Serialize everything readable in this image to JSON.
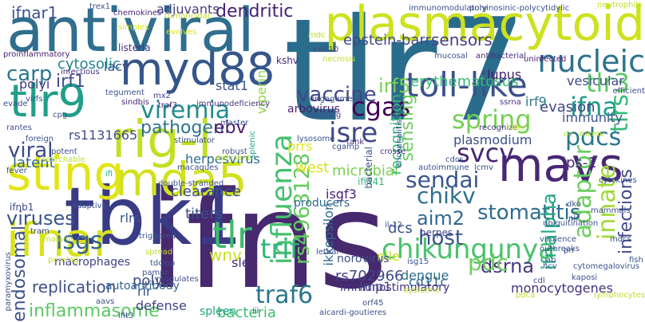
{
  "words": [
    {
      "text": "ifns",
      "color": "#46296e"
    },
    {
      "text": "tlr7",
      "color": "#2a6c8c"
    },
    {
      "text": "antiviral",
      "color": "#2f6e8e"
    },
    {
      "text": "plasmacytoid",
      "color": "#cde11d"
    },
    {
      "text": "tbk1",
      "color": "#3a3b85"
    },
    {
      "text": "myd88",
      "color": "#35568b"
    },
    {
      "text": "mavs",
      "color": "#482874"
    },
    {
      "text": "rig-i",
      "color": "#c2df23"
    },
    {
      "text": "sting",
      "color": "#e2e418"
    },
    {
      "text": "mda5",
      "color": "#d0e11c"
    },
    {
      "text": "tlr9",
      "color": "#1f9e89"
    },
    {
      "text": "ifnar",
      "color": "#d8e219"
    },
    {
      "text": "tlr",
      "color": "#3ebb6d"
    },
    {
      "text": "nucleic",
      "color": "#2c728e"
    },
    {
      "text": "toll-like",
      "color": "#3b518b"
    },
    {
      "text": "influenza",
      "color": "#47c06f"
    },
    {
      "text": "chikungunya",
      "color": "#4ac16d"
    },
    {
      "text": "viremia",
      "color": "#228c8d"
    },
    {
      "text": "cgas",
      "color": "#440154"
    },
    {
      "text": "isre",
      "color": "#3e4989"
    },
    {
      "text": "tlr3",
      "color": "#5dc863"
    },
    {
      "text": "spring",
      "color": "#74d055"
    },
    {
      "text": "ifna",
      "color": "#1e9b8a"
    },
    {
      "text": "pdcs",
      "color": "#2b758e"
    },
    {
      "text": "svcv",
      "color": "#482575"
    },
    {
      "text": "sendai",
      "color": "#39568c"
    },
    {
      "text": "chikv",
      "color": "#2d708e"
    },
    {
      "text": "innate",
      "color": "#a0da39"
    },
    {
      "text": "adaptor",
      "color": "#69cd5b"
    },
    {
      "text": "tlrs",
      "color": "#38b977"
    },
    {
      "text": "vaccine",
      "color": "#3f4788"
    },
    {
      "text": "carp",
      "color": "#2a788e"
    },
    {
      "text": "viral",
      "color": "#3e4a89"
    },
    {
      "text": "viruses",
      "color": "#3a548c"
    },
    {
      "text": "isgs",
      "color": "#33638d"
    },
    {
      "text": "ifnar1",
      "color": "#3b528b"
    },
    {
      "text": "dendritic",
      "color": "#482173"
    },
    {
      "text": "irf1",
      "color": "#3d4d8a"
    },
    {
      "text": "pathogen",
      "color": "#2c738e"
    },
    {
      "text": "ebv",
      "color": "#481b6d"
    },
    {
      "text": "trif",
      "color": "#32b67a"
    },
    {
      "text": "traf6",
      "color": "#2a768e"
    },
    {
      "text": "dsrna",
      "color": "#453882"
    },
    {
      "text": "stomatitis",
      "color": "#2e6d8e"
    },
    {
      "text": "pdc",
      "color": "#6ece58"
    },
    {
      "text": "host",
      "color": "#3b528b"
    },
    {
      "text": "aim2",
      "color": "#31688e"
    },
    {
      "text": "ifnalpha",
      "color": "#22a884"
    },
    {
      "text": "infections",
      "color": "#3f4889"
    },
    {
      "text": "rs4963128",
      "color": "#65cb5e"
    },
    {
      "text": "endosomal",
      "color": "#3b528b"
    },
    {
      "text": "replication",
      "color": "#3d4e8a"
    },
    {
      "text": "inflammasome",
      "color": "#5cc863"
    },
    {
      "text": "sensors",
      "color": "#423f85"
    },
    {
      "text": "epstein-barr",
      "color": "#3f4889"
    },
    {
      "text": "irf5",
      "color": "#7ad151"
    },
    {
      "text": "sensing",
      "color": "#6ccd5a"
    },
    {
      "text": "erythematosus",
      "color": "#38b977"
    },
    {
      "text": "lupus",
      "color": "#482071"
    },
    {
      "text": "vesicular",
      "color": "#3e4c8a"
    },
    {
      "text": "evasion",
      "color": "#424186"
    },
    {
      "text": "irf9",
      "color": "#2a788e"
    },
    {
      "text": "immunity",
      "color": "#3c508b"
    },
    {
      "text": "ips-1",
      "color": "#482979"
    },
    {
      "text": "herpesvirus",
      "color": "#2f6b8e"
    },
    {
      "text": "clearance",
      "color": "#3d4e8a"
    },
    {
      "text": "macrophages",
      "color": "#424186"
    },
    {
      "text": "titers",
      "color": "#3b528b"
    },
    {
      "text": "rlrs",
      "color": "#38588c"
    },
    {
      "text": "dcs",
      "color": "#3b528b"
    },
    {
      "text": "stat1",
      "color": "#3a538b"
    },
    {
      "text": "adjuvants",
      "color": "#433d84"
    },
    {
      "text": "lacv",
      "color": "#3d4d8a"
    },
    {
      "text": "kshv",
      "color": "#482677"
    },
    {
      "text": "cytosolic",
      "color": "#24868e"
    },
    {
      "text": "polyi",
      "color": "#46327e"
    },
    {
      "text": "rs1131665",
      "color": "#3e4c8a"
    },
    {
      "text": "latent",
      "color": "#31688e"
    },
    {
      "text": "wnv",
      "color": "#cae11f"
    },
    {
      "text": "rs702966",
      "color": "#3f4889"
    },
    {
      "text": "sle",
      "color": "#46307e"
    },
    {
      "text": "poly",
      "color": "#3e4989"
    },
    {
      "text": "rlr",
      "color": "#3b528b"
    },
    {
      "text": "defense",
      "color": "#414487"
    },
    {
      "text": "bacteria",
      "color": "#42be71"
    },
    {
      "text": "spleen",
      "color": "#20a386"
    },
    {
      "text": "lmp1",
      "color": "#3d4d8a"
    },
    {
      "text": "nile",
      "color": "#c2df23"
    },
    {
      "text": "west",
      "color": "#d5e21a"
    },
    {
      "text": "microbial",
      "color": "#7ad151"
    },
    {
      "text": "isgf3",
      "color": "#482173"
    },
    {
      "text": "plasmodium",
      "color": "#3c4f8a"
    },
    {
      "text": "ikkepsilon",
      "color": "#31688e"
    },
    {
      "text": "ifi441",
      "color": "#35b779"
    },
    {
      "text": "arbovirus",
      "color": "#481f70"
    },
    {
      "text": "mx2",
      "color": "#414487"
    },
    {
      "text": "viperin",
      "color": "#8bd646"
    },
    {
      "text": "cd11c",
      "color": "#2e6e8e"
    },
    {
      "text": "dengue",
      "color": "#2d708e"
    },
    {
      "text": "monocytogenes",
      "color": "#46327e"
    },
    {
      "text": "immunostimulatory",
      "color": "#46327e"
    },
    {
      "text": "recognition",
      "color": "#37b878"
    },
    {
      "text": "prrs",
      "color": "#e2e418"
    },
    {
      "text": "norovirus",
      "color": "#3d4e8a"
    },
    {
      "text": "autoantibody",
      "color": "#32658e"
    },
    {
      "text": "producers",
      "color": "#31688e"
    },
    {
      "text": "herpes",
      "color": "#414487"
    },
    {
      "text": "ifnb1",
      "color": "#3e4989"
    },
    {
      "text": "proinflammatory",
      "color": "#481c6e"
    },
    {
      "text": "listeria",
      "color": "#46307e"
    },
    {
      "text": "infectious",
      "color": "#463480"
    },
    {
      "text": "chemokines",
      "color": "#482475"
    },
    {
      "text": "trex1",
      "color": "#3b528b"
    },
    {
      "text": "immunomodulatory",
      "color": "#3b528b"
    },
    {
      "text": "polyinosinic-polycytidylic",
      "color": "#3b528b"
    },
    {
      "text": "neutrophils",
      "color": "#c2df23"
    },
    {
      "text": "tumoricidal",
      "color": "#bddf26"
    },
    {
      "text": "simplex",
      "color": "#d8e219"
    },
    {
      "text": "evolves",
      "color": "#dde318"
    },
    {
      "text": "mdc",
      "color": "#bddf26"
    },
    {
      "text": "cxcl10",
      "color": "#3f4788"
    },
    {
      "text": "necrosis",
      "color": "#bddf26"
    },
    {
      "text": "mucosal",
      "color": "#3b528b"
    },
    {
      "text": "antibacterial",
      "color": "#46307e"
    },
    {
      "text": "uninfected",
      "color": "#481d6f"
    },
    {
      "text": "efficient",
      "color": "#3b528b"
    },
    {
      "text": "ifi",
      "color": "#22a884"
    },
    {
      "text": "tegument",
      "color": "#3b528b"
    },
    {
      "text": "sindbis",
      "color": "#482878"
    },
    {
      "text": "evade",
      "color": "#3e4989"
    },
    {
      "text": "virfs",
      "color": "#3d4d8a"
    },
    {
      "text": "traf3",
      "color": "#482677"
    },
    {
      "text": "immunodeficiency",
      "color": "#46337f"
    },
    {
      "text": "cpg",
      "color": "#3b528b"
    },
    {
      "text": "tank",
      "color": "#46307e"
    },
    {
      "text": "cgamp",
      "color": "#3b528b"
    },
    {
      "text": "engagement",
      "color": "#3e4989"
    },
    {
      "text": "recognize",
      "color": "#46307e"
    },
    {
      "text": "killer",
      "color": "#c2df23"
    },
    {
      "text": "dc",
      "color": "#bddf26"
    },
    {
      "text": "ssrna",
      "color": "#46307e"
    },
    {
      "text": "rantes",
      "color": "#3b528b"
    },
    {
      "text": "foreign",
      "color": "#3b528b"
    },
    {
      "text": "stimulator",
      "color": "#3b528b"
    },
    {
      "text": "master",
      "color": "#3b528b"
    },
    {
      "text": "boosting",
      "color": "#3e4989"
    },
    {
      "text": "lysosome",
      "color": "#3b528b"
    },
    {
      "text": "encephalitis",
      "color": "#3b528b"
    },
    {
      "text": "crosse",
      "color": "#46307e"
    },
    {
      "text": "mcmv",
      "color": "#bddf26"
    },
    {
      "text": "fever",
      "color": "#3b528b"
    },
    {
      "text": "potent",
      "color": "#3b528b"
    },
    {
      "text": "searchable",
      "color": "#bddf26"
    },
    {
      "text": "robust",
      "color": "#3b528b"
    },
    {
      "text": "deficient",
      "color": "#bddf26"
    },
    {
      "text": "macaques",
      "color": "#3b528b"
    },
    {
      "text": "cdcs",
      "color": "#3b528b"
    },
    {
      "text": "lcmv",
      "color": "#3b528b"
    },
    {
      "text": "autoimmune",
      "color": "#3b528b"
    },
    {
      "text": "cytokines",
      "color": "#3b528b"
    },
    {
      "text": "double-stranded",
      "color": "#3b528b"
    },
    {
      "text": "splenic",
      "color": "#20a386"
    },
    {
      "text": "bacterial",
      "color": "#3b528b"
    },
    {
      "text": "adaptive",
      "color": "#3b528b"
    },
    {
      "text": "tram",
      "color": "#3b528b"
    },
    {
      "text": "malaria",
      "color": "#bddf26"
    },
    {
      "text": "triggered",
      "color": "#3b528b"
    },
    {
      "text": "lethal",
      "color": "#3b528b"
    },
    {
      "text": "il-12",
      "color": "#3b528b"
    },
    {
      "text": "dko",
      "color": "#3b528b"
    },
    {
      "text": "mammals",
      "color": "#3b528b"
    },
    {
      "text": "spread",
      "color": "#bddf26"
    },
    {
      "text": "tdcipp",
      "color": "#3b528b"
    },
    {
      "text": "pampr",
      "color": "#3b528b"
    },
    {
      "text": "priming",
      "color": "#bddf26"
    },
    {
      "text": "ubiquitination",
      "color": "#3b528b"
    },
    {
      "text": "nk",
      "color": "#3b528b"
    },
    {
      "text": "virulence",
      "color": "#3b528b"
    },
    {
      "text": "outbreaks",
      "color": "#3b528b"
    },
    {
      "text": "ab",
      "color": "#3b528b"
    },
    {
      "text": "hcv",
      "color": "#3b528b"
    },
    {
      "text": "isg15",
      "color": "#3b528b"
    },
    {
      "text": "modulates",
      "color": "#3b528b"
    },
    {
      "text": "prr",
      "color": "#3b528b"
    },
    {
      "text": "cytomegalovirus",
      "color": "#3b528b"
    },
    {
      "text": "kaposi",
      "color": "#3b528b"
    },
    {
      "text": "systemic",
      "color": "#bddf26"
    },
    {
      "text": "pdca",
      "color": "#bddf26"
    },
    {
      "text": "cdl",
      "color": "#3b528b"
    },
    {
      "text": "paramyxovirus",
      "color": "#3b528b"
    },
    {
      "text": "ifit3",
      "color": "#3b528b"
    },
    {
      "text": "orf45",
      "color": "#3b528b"
    },
    {
      "text": "iii",
      "color": "#3b528b"
    },
    {
      "text": "aicardi-goutieres",
      "color": "#3b528b"
    },
    {
      "text": "fish",
      "color": "#3b528b"
    },
    {
      "text": "mdcs",
      "color": "#3b528b"
    },
    {
      "text": "lymphocytes",
      "color": "#bddf26"
    },
    {
      "text": "aavs",
      "color": "#3b528b"
    }
  ]
}
